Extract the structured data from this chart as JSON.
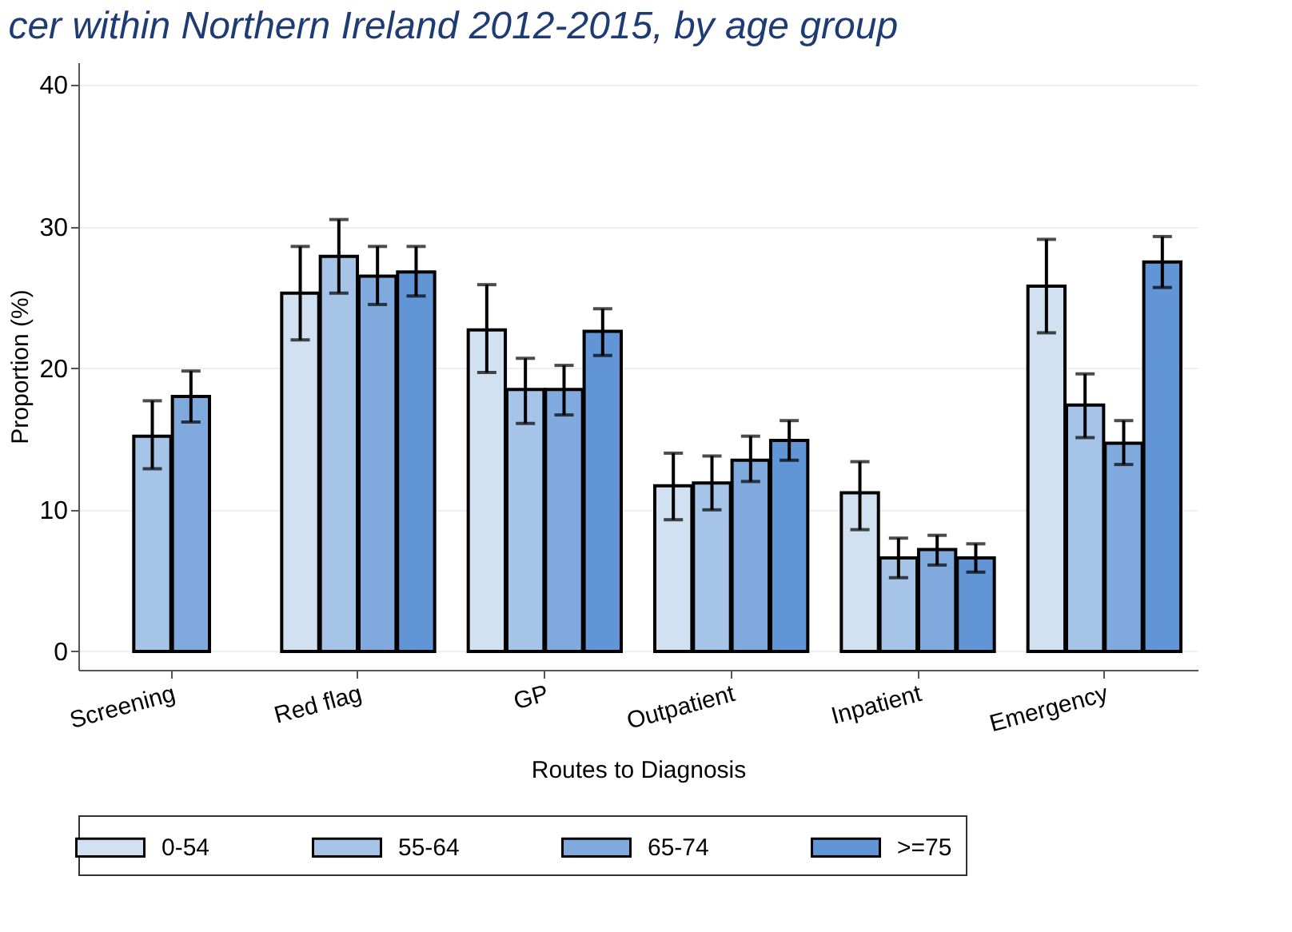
{
  "chart_data": {
    "type": "bar",
    "title": "cer within Northern Ireland 2012-2015, by age group",
    "xlabel": "Routes to Diagnosis",
    "ylabel": "Proportion (%)",
    "categories": [
      "Screening",
      "Red flag",
      "GP",
      "Outpatient",
      "Inpatient",
      "Emergency"
    ],
    "series": [
      {
        "name": "0-54",
        "color": "#d1e1f2",
        "values": [
          null,
          25.3,
          22.7,
          11.7,
          11.2,
          25.8
        ],
        "errors": [
          null,
          [
            22.0,
            28.6
          ],
          [
            19.7,
            25.9
          ],
          [
            9.3,
            14.0
          ],
          [
            8.6,
            13.4
          ],
          [
            22.5,
            29.1
          ]
        ]
      },
      {
        "name": "55-64",
        "color": "#a6c4e8",
        "values": [
          15.2,
          27.9,
          18.5,
          11.9,
          6.6,
          17.4
        ],
        "errors": [
          [
            12.9,
            17.7
          ],
          [
            25.3,
            30.5
          ],
          [
            16.1,
            20.7
          ],
          [
            10.0,
            13.8
          ],
          [
            5.2,
            8.0
          ],
          [
            15.1,
            19.6
          ]
        ]
      },
      {
        "name": "65-74",
        "color": "#80aade",
        "values": [
          18.0,
          26.5,
          18.5,
          13.5,
          7.2,
          14.7
        ],
        "errors": [
          [
            16.2,
            19.8
          ],
          [
            24.5,
            28.6
          ],
          [
            16.7,
            20.2
          ],
          [
            12.0,
            15.2
          ],
          [
            6.1,
            8.2
          ],
          [
            13.2,
            16.3
          ]
        ]
      },
      {
        "name": ">=75",
        "color": "#6195d6",
        "values": [
          null,
          26.8,
          22.6,
          14.9,
          6.6,
          27.5
        ],
        "errors": [
          null,
          [
            25.1,
            28.6
          ],
          [
            20.9,
            24.2
          ],
          [
            13.5,
            16.3
          ],
          [
            5.6,
            7.6
          ],
          [
            25.7,
            29.3
          ]
        ]
      }
    ],
    "ylim": [
      -1.3,
      41.6
    ],
    "yticks": [
      0,
      10,
      20,
      30,
      40
    ],
    "grid": "y",
    "legend": "bottom"
  }
}
